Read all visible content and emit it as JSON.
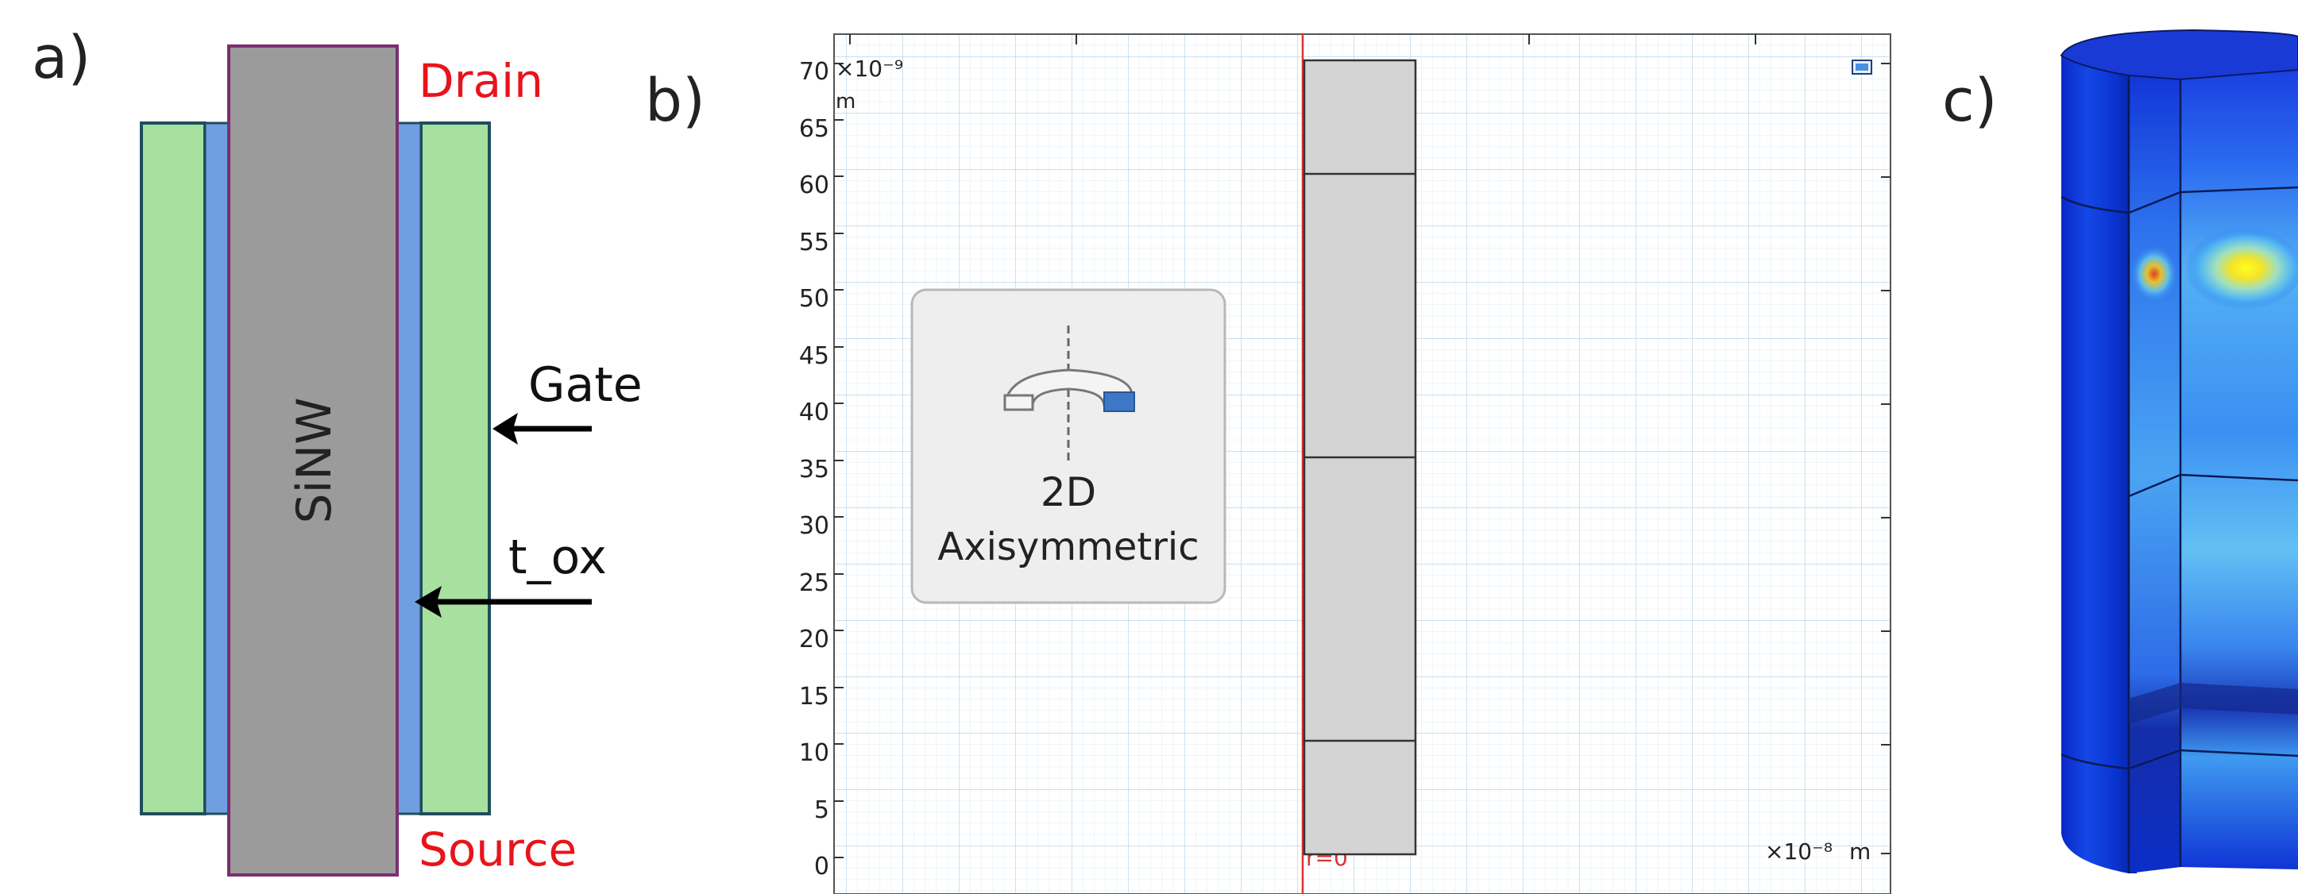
{
  "panel_a": {
    "label": "a)",
    "drain": "Drain",
    "source": "Source",
    "nanowire": "SiNW",
    "gate": "Gate",
    "oxide": "t_ox",
    "colors": {
      "gate_fill": "#a8e0a0",
      "oxide_fill": "#6f9fe0",
      "wire_fill": "#9b9b9b",
      "wire_stroke": "#7b2f6e",
      "outline": "#1f4e5c",
      "red_text": "#e8141b"
    }
  },
  "panel_b": {
    "label": "b)",
    "y_exponent": "×10⁻⁹",
    "y_unit": "m",
    "x_exponent": "×10⁻⁸",
    "x_unit": "m",
    "y_ticks": [
      "70",
      "65",
      "60",
      "55",
      "50",
      "45",
      "40",
      "35",
      "30",
      "25",
      "20",
      "15",
      "10",
      "5",
      "0"
    ],
    "axis_marker": "r=0",
    "badge_line1": "2D",
    "badge_line2": "Axisymmetric",
    "geometry_boundaries": [
      0,
      10,
      35,
      60,
      70
    ],
    "colors": {
      "grid": "#cfe4f1",
      "geometry_fill": "#d4d4d4",
      "axis_red": "#e03030"
    }
  },
  "panel_c": {
    "label": "c)",
    "colors": {
      "low": "#0a2fd6",
      "mid": "#4aa8f0",
      "high": "#f0e020"
    }
  }
}
